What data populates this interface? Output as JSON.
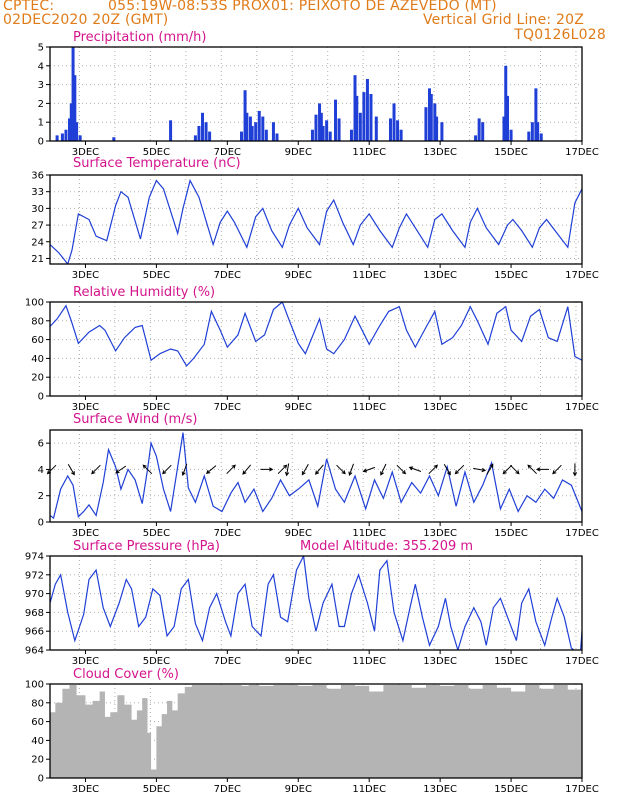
{
  "header": {
    "line1_left": "CPTEC:",
    "line1_center": "055:19W-08:53S   PROX01: PEIXOTO DE AZEVEDO (MT)",
    "line2_left": "02DEC2020 20Z (GMT)",
    "line2_right": "Vertical Grid Line: 20Z",
    "line3_right": "TQ0126L028"
  },
  "colors": {
    "header": "#e07b1a",
    "title": "#d4148c",
    "series": "#1f3fd6",
    "cloud": "#b4b4b4",
    "grid": "#b0b0b0"
  },
  "x_ticks": [
    "3DEC",
    "5DEC",
    "7DEC",
    "9DEC",
    "11DEC",
    "13DEC",
    "15DEC",
    "17DEC"
  ],
  "chart_data": [
    {
      "type": "bar",
      "title": "Precipitation (mm/h)",
      "ylim": [
        0,
        5
      ],
      "yticks": [
        0,
        1,
        2,
        3,
        4,
        5
      ],
      "bars": [
        [
          2.2,
          0.3
        ],
        [
          2.35,
          0.4
        ],
        [
          2.45,
          0.6
        ],
        [
          2.55,
          1.2
        ],
        [
          2.6,
          2.0
        ],
        [
          2.65,
          5.0
        ],
        [
          2.7,
          3.5
        ],
        [
          2.75,
          1.0
        ],
        [
          2.85,
          0.3
        ],
        [
          3.8,
          0.2
        ],
        [
          5.4,
          1.1
        ],
        [
          6.1,
          0.3
        ],
        [
          6.2,
          0.8
        ],
        [
          6.3,
          1.5
        ],
        [
          6.4,
          1.0
        ],
        [
          6.5,
          0.5
        ],
        [
          7.4,
          0.5
        ],
        [
          7.5,
          2.7
        ],
        [
          7.55,
          1.5
        ],
        [
          7.65,
          1.3
        ],
        [
          7.7,
          0.8
        ],
        [
          7.8,
          1.0
        ],
        [
          7.9,
          1.6
        ],
        [
          8.0,
          1.3
        ],
        [
          8.1,
          0.6
        ],
        [
          8.3,
          1.0
        ],
        [
          8.4,
          0.4
        ],
        [
          9.4,
          0.6
        ],
        [
          9.5,
          1.4
        ],
        [
          9.6,
          2.0
        ],
        [
          9.65,
          1.5
        ],
        [
          9.7,
          0.8
        ],
        [
          9.8,
          1.1
        ],
        [
          9.9,
          0.5
        ],
        [
          10.05,
          2.2
        ],
        [
          10.15,
          1.2
        ],
        [
          10.5,
          0.6
        ],
        [
          10.6,
          3.5
        ],
        [
          10.65,
          2.4
        ],
        [
          10.75,
          1.5
        ],
        [
          10.85,
          2.6
        ],
        [
          10.95,
          3.3
        ],
        [
          11.05,
          2.5
        ],
        [
          11.2,
          1.3
        ],
        [
          11.6,
          1.2
        ],
        [
          11.7,
          2.0
        ],
        [
          11.8,
          1.1
        ],
        [
          11.9,
          0.6
        ],
        [
          12.6,
          1.8
        ],
        [
          12.7,
          2.8
        ],
        [
          12.75,
          2.5
        ],
        [
          12.85,
          2.0
        ],
        [
          12.9,
          1.3
        ],
        [
          13.05,
          1.0
        ],
        [
          14.0,
          0.3
        ],
        [
          14.1,
          1.2
        ],
        [
          14.2,
          1.0
        ],
        [
          14.8,
          1.3
        ],
        [
          14.85,
          4.0
        ],
        [
          14.9,
          2.4
        ],
        [
          15.0,
          0.6
        ],
        [
          15.5,
          0.5
        ],
        [
          15.6,
          1.0
        ],
        [
          15.7,
          2.8
        ],
        [
          15.75,
          1.0
        ],
        [
          15.85,
          0.4
        ]
      ]
    },
    {
      "type": "line",
      "title": "Surface Temperature (nC)",
      "ylim": [
        20,
        36
      ],
      "yticks": [
        21,
        24,
        27,
        30,
        33,
        36
      ],
      "x": [
        2.0,
        2.25,
        2.5,
        2.62,
        2.8,
        3.1,
        3.3,
        3.6,
        3.85,
        4.0,
        4.2,
        4.55,
        4.8,
        5.0,
        5.2,
        5.6,
        5.75,
        5.95,
        6.2,
        6.6,
        6.8,
        7.0,
        7.2,
        7.55,
        7.8,
        8.0,
        8.25,
        8.55,
        8.75,
        9.0,
        9.25,
        9.6,
        9.8,
        10.0,
        10.25,
        10.55,
        10.75,
        11.0,
        11.3,
        11.65,
        11.85,
        12.05,
        12.3,
        12.65,
        12.85,
        13.05,
        13.35,
        13.7,
        13.85,
        14.05,
        14.3,
        14.65,
        14.9,
        15.05,
        15.3,
        15.6,
        15.8,
        16.0,
        16.3,
        16.6,
        16.8,
        17.0
      ],
      "values": [
        23.5,
        22.0,
        20.0,
        22.5,
        29.0,
        28.0,
        25.0,
        24.2,
        30.5,
        33.0,
        32.0,
        24.5,
        32.0,
        35.0,
        33.5,
        25.5,
        30.0,
        35.0,
        32.0,
        23.5,
        27.5,
        29.5,
        27.5,
        23.0,
        28.5,
        30.0,
        26.0,
        23.0,
        27.0,
        30.0,
        26.5,
        23.5,
        29.5,
        31.5,
        27.5,
        23.5,
        27.0,
        29.0,
        26.0,
        23.0,
        26.5,
        29.0,
        26.5,
        23.0,
        28.0,
        29.0,
        26.0,
        23.0,
        27.5,
        30.0,
        26.5,
        23.5,
        27.0,
        28.0,
        26.0,
        23.0,
        26.5,
        28.0,
        25.5,
        23.0,
        31.0,
        33.5
      ]
    },
    {
      "type": "line",
      "title": "Relative Humidity (%)",
      "ylim": [
        0,
        100
      ],
      "yticks": [
        0,
        20,
        40,
        60,
        80,
        100
      ],
      "x": [
        2.0,
        2.2,
        2.45,
        2.6,
        2.8,
        3.1,
        3.4,
        3.55,
        3.85,
        4.1,
        4.4,
        4.6,
        4.85,
        5.1,
        5.4,
        5.6,
        5.85,
        6.05,
        6.35,
        6.55,
        6.8,
        7.0,
        7.3,
        7.5,
        7.8,
        8.05,
        8.3,
        8.55,
        8.75,
        9.0,
        9.2,
        9.6,
        9.8,
        10.0,
        10.3,
        10.6,
        10.8,
        11.0,
        11.3,
        11.55,
        11.85,
        12.05,
        12.3,
        12.6,
        12.85,
        13.05,
        13.35,
        13.6,
        13.85,
        14.05,
        14.35,
        14.6,
        14.85,
        15.0,
        15.3,
        15.55,
        15.8,
        16.05,
        16.3,
        16.6,
        16.8,
        17.0
      ],
      "values": [
        74,
        82,
        96,
        80,
        56,
        68,
        75,
        70,
        48,
        62,
        73,
        75,
        38,
        45,
        50,
        48,
        32,
        40,
        55,
        90,
        70,
        52,
        65,
        88,
        58,
        65,
        92,
        100,
        80,
        56,
        45,
        82,
        50,
        45,
        60,
        85,
        70,
        55,
        75,
        90,
        95,
        70,
        52,
        73,
        90,
        55,
        62,
        75,
        95,
        80,
        55,
        88,
        95,
        70,
        58,
        85,
        92,
        62,
        58,
        95,
        42,
        38
      ]
    },
    {
      "type": "line",
      "title": "Surface Wind (m/s)",
      "ylim": [
        0,
        7
      ],
      "yticks": [
        0,
        2,
        4,
        6
      ],
      "x": [
        2.0,
        2.1,
        2.3,
        2.5,
        2.65,
        2.8,
        2.95,
        3.1,
        3.3,
        3.5,
        3.65,
        3.85,
        4.0,
        4.2,
        4.4,
        4.6,
        4.75,
        4.85,
        5.0,
        5.2,
        5.4,
        5.6,
        5.75,
        5.9,
        6.1,
        6.35,
        6.6,
        6.85,
        7.1,
        7.3,
        7.5,
        7.75,
        8.0,
        8.25,
        8.5,
        8.75,
        9.0,
        9.3,
        9.55,
        9.8,
        10.05,
        10.3,
        10.6,
        10.9,
        11.15,
        11.4,
        11.65,
        11.9,
        12.2,
        12.45,
        12.7,
        12.95,
        13.2,
        13.45,
        13.7,
        13.95,
        14.2,
        14.45,
        14.7,
        14.95,
        15.2,
        15.45,
        15.7,
        15.95,
        16.2,
        16.45,
        16.7,
        17.0
      ],
      "values": [
        0.5,
        0.3,
        2.5,
        3.5,
        2.8,
        0.4,
        0.8,
        1.3,
        0.5,
        3.0,
        5.5,
        4.2,
        2.5,
        4.0,
        3.2,
        1.4,
        4.0,
        6.0,
        5.0,
        2.5,
        0.8,
        4.2,
        6.8,
        2.6,
        1.5,
        3.5,
        1.2,
        0.8,
        2.2,
        3.0,
        1.5,
        2.5,
        0.8,
        1.8,
        3.2,
        2.0,
        2.5,
        3.2,
        1.2,
        4.8,
        2.5,
        1.5,
        3.5,
        1.0,
        3.2,
        1.8,
        3.8,
        1.5,
        3.0,
        2.2,
        3.5,
        2.0,
        4.2,
        1.2,
        3.8,
        1.5,
        2.8,
        4.5,
        1.0,
        2.5,
        0.8,
        2.0,
        1.5,
        2.5,
        1.8,
        3.2,
        2.8,
        0.8
      ],
      "vectors": [
        [
          2.05,
          4,
          225
        ],
        [
          2.6,
          4,
          300
        ],
        [
          3.3,
          4,
          225
        ],
        [
          4.0,
          4,
          215
        ],
        [
          4.75,
          4,
          135
        ],
        [
          5.3,
          4,
          225
        ],
        [
          5.8,
          4,
          250
        ],
        [
          6.55,
          4,
          220
        ],
        [
          7.1,
          4,
          45
        ],
        [
          7.55,
          4,
          230
        ],
        [
          8.1,
          4,
          0
        ],
        [
          8.55,
          4,
          45
        ],
        [
          8.7,
          4,
          260
        ],
        [
          9.2,
          4,
          240
        ],
        [
          9.6,
          4,
          230
        ],
        [
          10.2,
          4,
          315
        ],
        [
          10.5,
          4,
          250
        ],
        [
          11.0,
          4,
          200
        ],
        [
          11.4,
          4,
          245
        ],
        [
          11.9,
          4,
          315
        ],
        [
          12.3,
          4,
          160
        ],
        [
          12.8,
          4,
          45
        ],
        [
          13.2,
          4,
          300
        ],
        [
          13.55,
          4,
          225
        ],
        [
          14.1,
          4,
          350
        ],
        [
          14.4,
          4,
          60
        ],
        [
          14.9,
          4,
          225
        ],
        [
          15.1,
          4,
          315
        ],
        [
          15.6,
          4,
          135
        ],
        [
          15.9,
          4,
          180
        ],
        [
          16.3,
          4,
          225
        ],
        [
          16.8,
          4,
          270
        ]
      ]
    },
    {
      "type": "line",
      "title": "Surface Pressure (hPa)",
      "annotation": "Model Altitude: 355.209 m",
      "ylim": [
        964,
        974
      ],
      "yticks": [
        964,
        966,
        968,
        970,
        972,
        974
      ],
      "x": [
        2.0,
        2.15,
        2.3,
        2.5,
        2.7,
        2.95,
        3.1,
        3.3,
        3.5,
        3.7,
        3.95,
        4.15,
        4.3,
        4.5,
        4.7,
        4.9,
        5.1,
        5.3,
        5.5,
        5.7,
        5.9,
        6.1,
        6.3,
        6.5,
        6.7,
        6.95,
        7.1,
        7.3,
        7.5,
        7.7,
        7.95,
        8.15,
        8.3,
        8.5,
        8.7,
        8.95,
        9.15,
        9.3,
        9.5,
        9.7,
        9.95,
        10.15,
        10.3,
        10.5,
        10.7,
        10.95,
        11.15,
        11.3,
        11.5,
        11.7,
        11.95,
        12.15,
        12.3,
        12.5,
        12.7,
        12.95,
        13.15,
        13.3,
        13.5,
        13.7,
        13.95,
        14.15,
        14.3,
        14.5,
        14.7,
        14.95,
        15.15,
        15.3,
        15.5,
        15.7,
        15.95,
        16.15,
        16.3,
        16.5,
        16.7,
        16.95,
        17.0
      ],
      "values": [
        969.0,
        971.0,
        972.0,
        968.0,
        965.0,
        967.8,
        971.5,
        972.5,
        968.5,
        966.5,
        969.0,
        971.5,
        970.5,
        966.5,
        967.5,
        970.5,
        969.8,
        965.5,
        966.5,
        970.5,
        971.5,
        966.8,
        965.0,
        968.5,
        970.0,
        967.0,
        965.5,
        970.0,
        971.0,
        966.5,
        965.5,
        971.0,
        972.0,
        967.5,
        967.0,
        972.5,
        974.0,
        969.5,
        966.0,
        969.0,
        971.0,
        966.5,
        966.5,
        970.0,
        972.0,
        969.0,
        966.0,
        972.5,
        973.5,
        968.0,
        965.0,
        968.5,
        971.0,
        967.5,
        964.5,
        966.5,
        969.5,
        966.5,
        964.0,
        966.5,
        968.5,
        967.0,
        964.5,
        968.5,
        969.5,
        967.0,
        965.0,
        969.0,
        970.5,
        967.0,
        964.5,
        967.5,
        969.5,
        967.5,
        964.2,
        963.5,
        966.0
      ]
    },
    {
      "type": "area",
      "title": "Cloud Cover (%)",
      "ylim": [
        0,
        100
      ],
      "yticks": [
        0,
        20,
        40,
        60,
        80,
        100
      ],
      "x": [
        2.0,
        2.15,
        2.35,
        2.55,
        2.75,
        3.0,
        3.2,
        3.4,
        3.55,
        3.7,
        3.9,
        4.1,
        4.3,
        4.45,
        4.6,
        4.75,
        4.85,
        5.0,
        5.15,
        5.3,
        5.45,
        5.6,
        5.8,
        6.0,
        6.3,
        6.6,
        6.9,
        7.2,
        7.4,
        7.6,
        7.9,
        8.3,
        8.7,
        9.0,
        9.4,
        9.8,
        10.2,
        10.6,
        11.0,
        11.4,
        11.8,
        12.2,
        12.6,
        13.0,
        13.4,
        13.8,
        14.2,
        14.6,
        15.0,
        15.4,
        15.8,
        16.2,
        16.6,
        17.0
      ],
      "values": [
        70,
        80,
        95,
        99,
        88,
        78,
        82,
        92,
        65,
        70,
        88,
        78,
        62,
        72,
        85,
        48,
        9,
        55,
        68,
        82,
        72,
        90,
        97,
        99,
        99,
        99,
        99,
        99,
        98,
        99,
        98,
        99,
        99,
        98,
        99,
        95,
        99,
        98,
        92,
        99,
        99,
        96,
        99,
        98,
        99,
        95,
        99,
        96,
        92,
        99,
        95,
        99,
        94,
        98
      ]
    }
  ]
}
